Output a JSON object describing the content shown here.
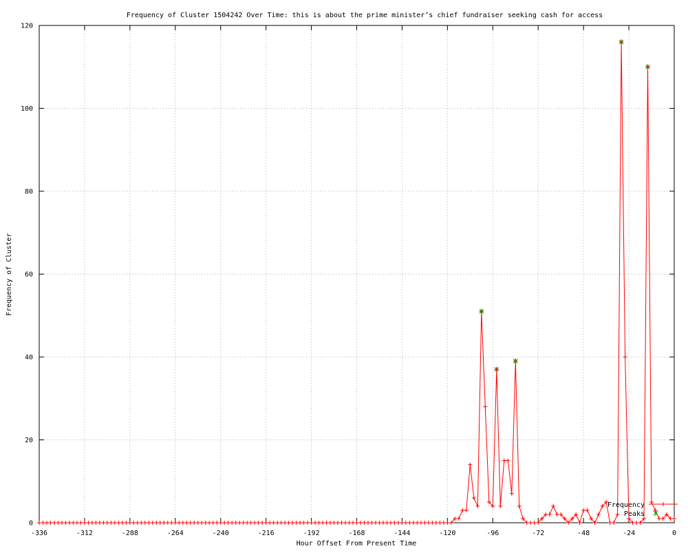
{
  "chart_data": {
    "type": "line",
    "title": "Frequency of Cluster 1504242 Over Time: this is about the prime minister’s chief fundraiser seeking cash for access",
    "xlabel": "Hour Offset From Present Time",
    "ylabel": "Frequency of Cluster",
    "xlim": [
      -336,
      0
    ],
    "ylim": [
      0,
      120
    ],
    "x_tick_step": 24,
    "y_tick_step": 20,
    "x_tick_labels": [
      "-336",
      "-312",
      "-288",
      "-264",
      "-240",
      "-216",
      "-192",
      "-168",
      "-144",
      "-120",
      "-96",
      "-72",
      "-48",
      "-24",
      "0"
    ],
    "y_tick_labels": [
      "0",
      "20",
      "40",
      "60",
      "80",
      "100",
      "120"
    ],
    "grid": true,
    "grid_color": "#b0b0b0",
    "background_color": "#ffffff",
    "border_color": "#000000",
    "legend_position": "bottom-right",
    "series": [
      {
        "name": "Frequency",
        "color": "#ff0000",
        "marker": "plus",
        "style": "linespoints",
        "x_start": -336,
        "x_end": 0,
        "x_step": 2,
        "fill_value": 0,
        "nonzero_points": {
          "-116": 1,
          "-114": 1,
          "-112": 3,
          "-110": 3,
          "-108": 14,
          "-106": 6,
          "-104": 4,
          "-102": 51,
          "-100": 28,
          "-98": 5,
          "-96": 4,
          "-94": 37,
          "-92": 4,
          "-90": 15,
          "-88": 15,
          "-86": 7,
          "-84": 39,
          "-82": 4,
          "-80": 1,
          "-70": 1,
          "-68": 2,
          "-66": 2,
          "-64": 4,
          "-62": 2,
          "-60": 2,
          "-58": 1,
          "-54": 1,
          "-52": 2,
          "-48": 3,
          "-46": 3,
          "-44": 1,
          "-40": 2,
          "-38": 4,
          "-36": 5,
          "-30": 2,
          "-28": 116,
          "-26": 40,
          "-24": 1,
          "-16": 1,
          "-14": 110,
          "-12": 5,
          "-10": 3,
          "-8": 1,
          "-6": 1,
          "-4": 2,
          "-2": 1,
          "0": 1
        }
      },
      {
        "name": "Peaks",
        "color": "#00a000",
        "marker": "asterisk",
        "style": "points",
        "points": [
          [
            -102,
            51
          ],
          [
            -94,
            37
          ],
          [
            -84,
            39
          ],
          [
            -28,
            116
          ],
          [
            -14,
            110
          ]
        ]
      }
    ]
  },
  "legend": {
    "frequency_label": "Frequency",
    "peaks_label": "Peaks"
  }
}
